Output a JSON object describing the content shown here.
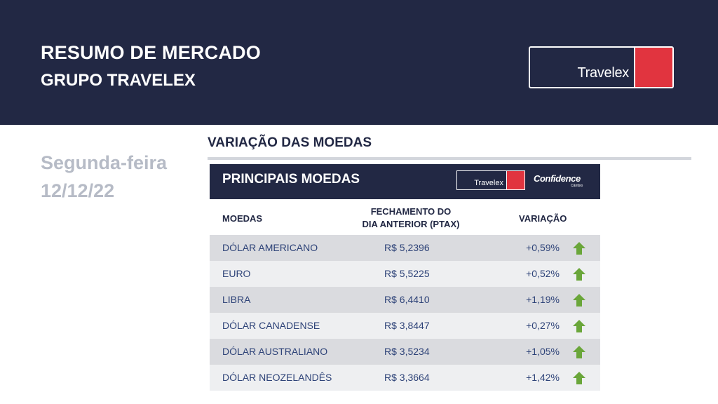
{
  "header": {
    "title": "RESUMO DE MERCADO",
    "subtitle": "GRUPO TRAVELEX",
    "logo_text": "Travelex"
  },
  "date": {
    "weekday": "Segunda-feira",
    "date": "12/12/22"
  },
  "section": {
    "title": "VARIAÇÃO DAS MOEDAS"
  },
  "card": {
    "title": "PRINCIPAIS MOEDAS",
    "logo_text": "Travelex",
    "partner_logo_text": "Confidence",
    "partner_logo_sub": "Câmbio"
  },
  "table": {
    "headers": {
      "currency": "MOEDAS",
      "close_line1": "FECHAMENTO DO",
      "close_line2": "DIA ANTERIOR (PTAX)",
      "variation": "VARIAÇÃO"
    },
    "rows": [
      {
        "currency": "DÓLAR AMERICANO",
        "close": "R$ 5,2396",
        "variation": "+0,59%",
        "trend": "up-arrow-icon"
      },
      {
        "currency": "EURO",
        "close": "R$ 5,5225",
        "variation": "+0,52%",
        "trend": "up-arrow-icon"
      },
      {
        "currency": "LIBRA",
        "close": "R$ 6,4410",
        "variation": "+1,19%",
        "trend": "up-arrow-icon"
      },
      {
        "currency": "DÓLAR CANADENSE",
        "close": "R$ 3,8447",
        "variation": "+0,27%",
        "trend": "up-arrow-icon"
      },
      {
        "currency": "DÓLAR AUSTRALIANO",
        "close": "R$ 3,5234",
        "variation": "+1,05%",
        "trend": "up-arrow-icon"
      },
      {
        "currency": "DÓLAR NEOZELANDÊS",
        "close": "R$ 3,3664",
        "variation": "+1,42%",
        "trend": "up-arrow-icon"
      }
    ]
  },
  "colors": {
    "navy": "#222844",
    "brand_red": "#e1343f",
    "up_green": "#6aa63a"
  }
}
